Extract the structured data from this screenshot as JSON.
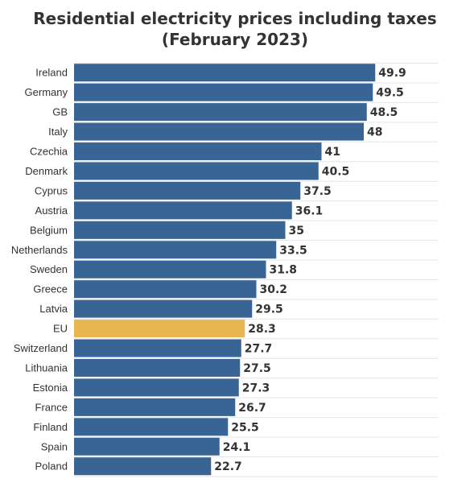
{
  "chart_data": {
    "type": "bar",
    "orientation": "horizontal",
    "title": "Residential electricity prices including taxes (February 2023)",
    "xlabel": "",
    "ylabel": "",
    "grid": true,
    "categories": [
      "Ireland",
      "Germany",
      "GB",
      "Italy",
      "Czechia",
      "Denmark",
      "Cyprus",
      "Austria",
      "Belgium",
      "Netherlands",
      "Sweden",
      "Greece",
      "Latvia",
      "EU",
      "Switzerland",
      "Lithuania",
      "Estonia",
      "France",
      "Finland",
      "Spain",
      "Poland"
    ],
    "values": [
      49.9,
      49.5,
      48.5,
      48,
      41,
      40.5,
      37.5,
      36.1,
      35,
      33.5,
      31.8,
      30.2,
      29.5,
      28.3,
      27.7,
      27.5,
      27.3,
      26.7,
      25.5,
      24.1,
      22.7
    ],
    "value_labels": [
      "49.9",
      "49.5",
      "48.5",
      "48",
      "41",
      "40.5",
      "37.5",
      "36.1",
      "35",
      "33.5",
      "31.8",
      "30.2",
      "29.5",
      "28.3",
      "27.7",
      "27.5",
      "27.3",
      "26.7",
      "25.5",
      "24.1",
      "22.7"
    ],
    "highlight": "EU",
    "colors": {
      "bar": "#386593",
      "highlight": "#e8b54f",
      "text": "#333333",
      "grid": "#e6e6e6"
    }
  }
}
